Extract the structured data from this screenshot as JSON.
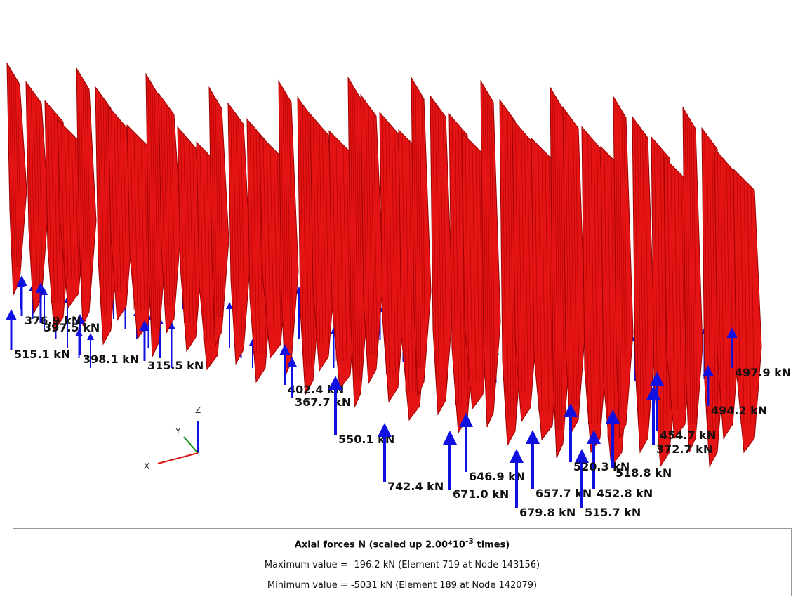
{
  "viewport": {
    "axes": {
      "x": "X",
      "y": "Y",
      "z": "Z"
    },
    "reaction_labels": [
      "515.1 kN",
      "398.1 kN",
      "376.9 kN",
      "397.5 kN",
      "315.5 kN",
      "402.4 kN",
      "367.7 kN",
      "550.1 kN",
      "742.4 kN",
      "671.0 kN",
      "646.9 kN",
      "679.8 kN",
      "657.7 kN",
      "515.7 kN",
      "452.8 kN",
      "520.3 kN",
      "518.8 kN",
      "372.7 kN",
      "454.7 kN",
      "494.2 kN",
      "497.9 kN"
    ]
  },
  "legend": {
    "title": "Axial forces N (scaled up 2.00*10",
    "title_exponent": "-3",
    "title_suffix": " times)",
    "maximum": "Maximum value = -196.2 kN (Element 719 at Node 143156)",
    "minimum": "Minimum value = -5031 kN (Element 189 at Node 142079)"
  }
}
